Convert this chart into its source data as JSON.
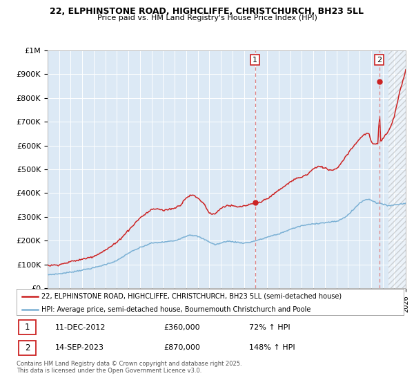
{
  "title_line1": "22, ELPHINSTONE ROAD, HIGHCLIFFE, CHRISTCHURCH, BH23 5LL",
  "title_line2": "Price paid vs. HM Land Registry's House Price Index (HPI)",
  "ylim": [
    0,
    1000000
  ],
  "xlim": [
    1995.0,
    2026.0
  ],
  "yticks": [
    0,
    100000,
    200000,
    300000,
    400000,
    500000,
    600000,
    700000,
    800000,
    900000,
    1000000
  ],
  "ytick_labels": [
    "£0",
    "£100K",
    "£200K",
    "£300K",
    "£400K",
    "£500K",
    "£600K",
    "£700K",
    "£800K",
    "£900K",
    "£1M"
  ],
  "red_color": "#cc2222",
  "blue_color": "#7ab0d4",
  "bg_color": "#dce9f5",
  "grid_color": "#c8d8e8",
  "hatch_region_start": 2024.5,
  "transaction1_year": 2012.95,
  "transaction1_price": 360000,
  "transaction2_year": 2023.71,
  "transaction2_price": 870000,
  "legend_red_label": "22, ELPHINSTONE ROAD, HIGHCLIFFE, CHRISTCHURCH, BH23 5LL (semi-detached house)",
  "legend_blue_label": "HPI: Average price, semi-detached house, Bournemouth Christchurch and Poole",
  "annotation1_date": "11-DEC-2012",
  "annotation1_price": "£360,000",
  "annotation1_hpi": "72% ↑ HPI",
  "annotation2_date": "14-SEP-2023",
  "annotation2_price": "£870,000",
  "annotation2_hpi": "148% ↑ HPI",
  "footer": "Contains HM Land Registry data © Crown copyright and database right 2025.\nThis data is licensed under the Open Government Licence v3.0."
}
